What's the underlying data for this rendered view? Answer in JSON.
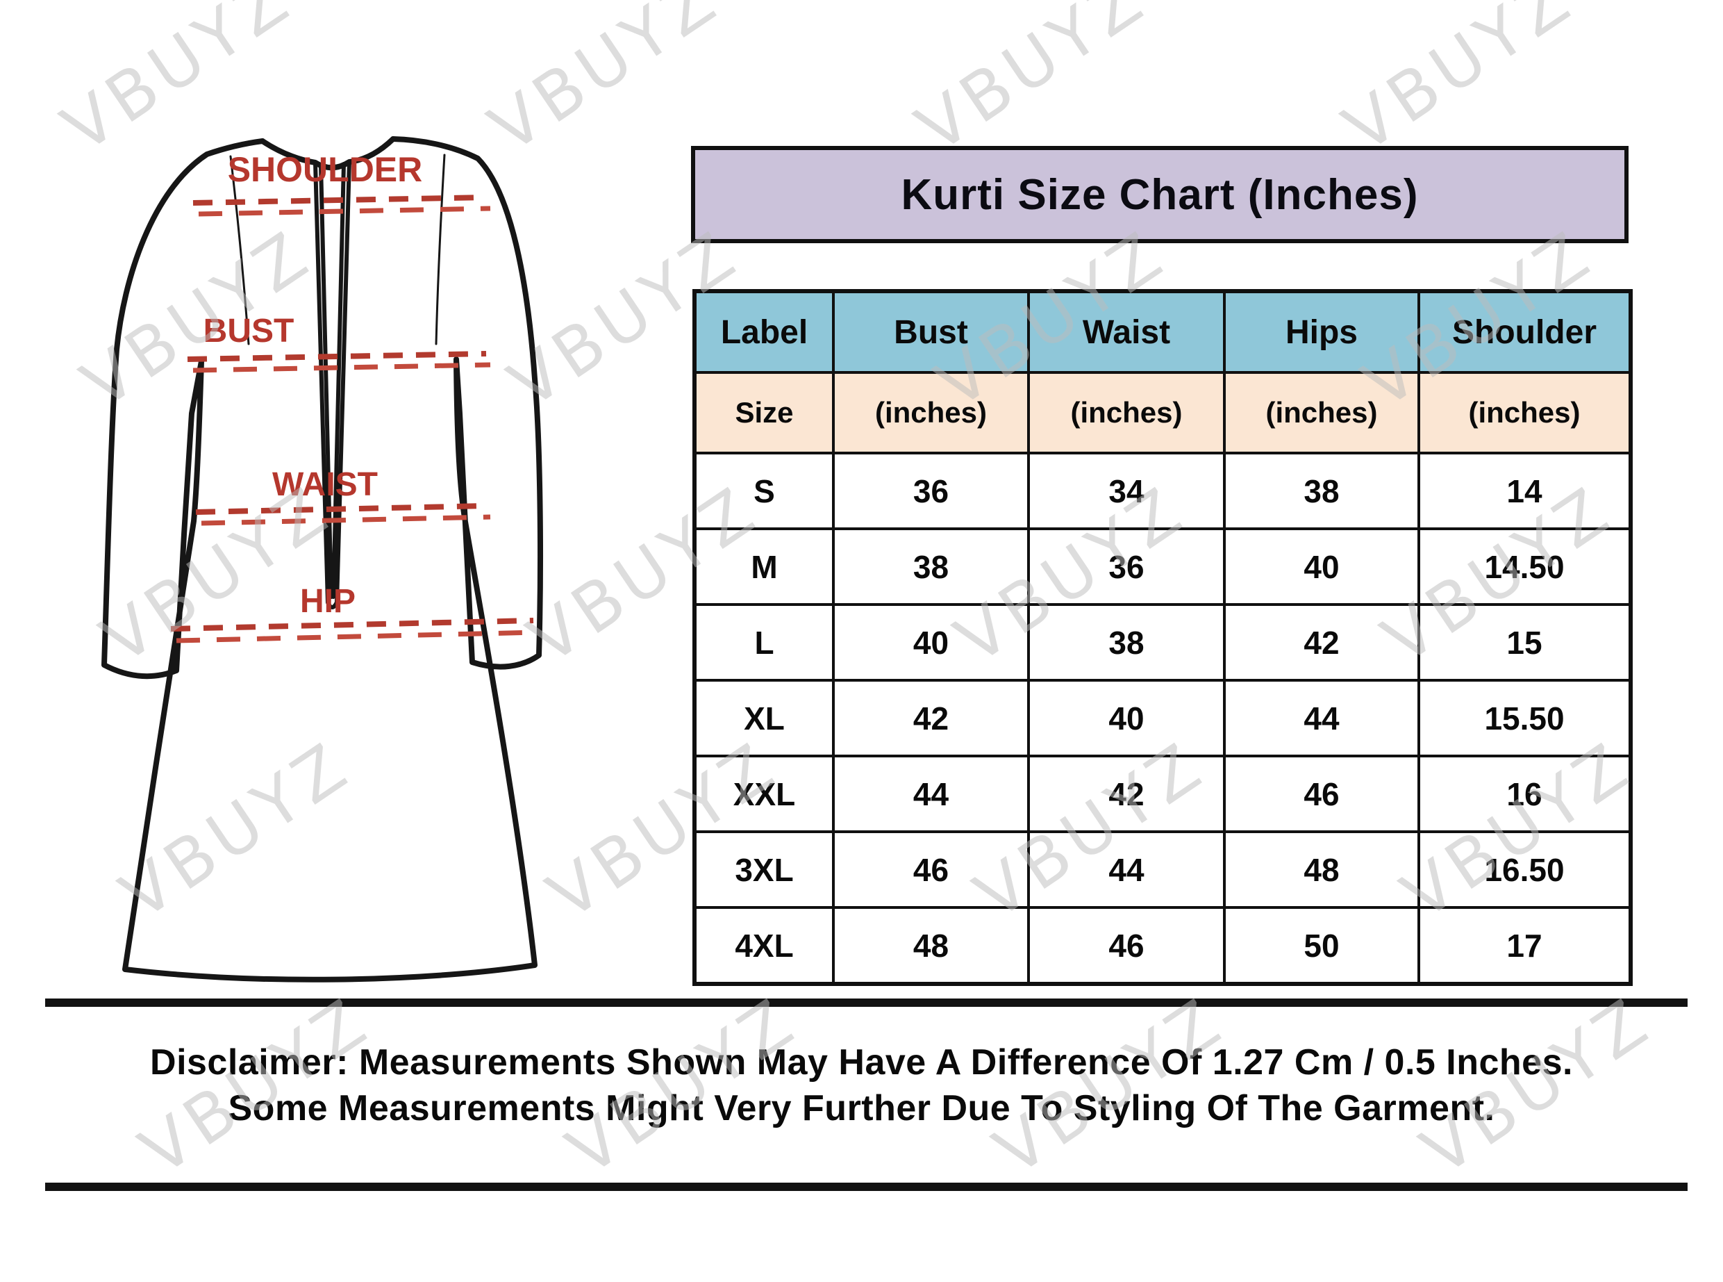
{
  "watermark": {
    "text": "VBUYZ",
    "color": "#bdbdbd"
  },
  "diagram": {
    "labels": {
      "shoulder": "SHOULDER",
      "bust": "BUST",
      "waist": "WAIST",
      "hip": "HIP"
    },
    "line_color": "#b23a2e",
    "outline_color": "#161616"
  },
  "title": {
    "text": "Kurti Size Chart (Inches)",
    "bg": "#cbc2da"
  },
  "size_table": {
    "header_bg": "#8fc7d9",
    "subheader_bg": "#fbe6d3",
    "header": [
      "Label",
      "Bust",
      "Waist",
      "Hips",
      "Shoulder"
    ],
    "subheader": [
      "Size",
      "(inches)",
      "(inches)",
      "(inches)",
      "(inches)"
    ],
    "rows": [
      [
        "S",
        "36",
        "34",
        "38",
        "14"
      ],
      [
        "M",
        "38",
        "36",
        "40",
        "14.50"
      ],
      [
        "L",
        "40",
        "38",
        "42",
        "15"
      ],
      [
        "XL",
        "42",
        "40",
        "44",
        "15.50"
      ],
      [
        "XXL",
        "44",
        "42",
        "46",
        "16"
      ],
      [
        "3XL",
        "46",
        "44",
        "48",
        "16.50"
      ],
      [
        "4XL",
        "48",
        "46",
        "50",
        "17"
      ]
    ]
  },
  "disclaimer": {
    "line1": "Disclaimer: Measurements Shown May Have A Difference Of 1.27 Cm / 0.5 Inches.",
    "line2": "Some Measurements Might Very Further Due To Styling Of The Garment."
  },
  "chart_data": {
    "type": "table",
    "title": "Kurti Size Chart (Inches)",
    "columns": [
      "Label Size",
      "Bust (inches)",
      "Waist (inches)",
      "Hips (inches)",
      "Shoulder (inches)"
    ],
    "rows": [
      [
        "S",
        36,
        34,
        38,
        14
      ],
      [
        "M",
        38,
        36,
        40,
        14.5
      ],
      [
        "L",
        40,
        38,
        42,
        15
      ],
      [
        "XL",
        42,
        40,
        44,
        15.5
      ],
      [
        "XXL",
        44,
        42,
        46,
        16
      ],
      [
        "3XL",
        46,
        44,
        48,
        16.5
      ],
      [
        "4XL",
        48,
        46,
        50,
        17
      ]
    ]
  }
}
